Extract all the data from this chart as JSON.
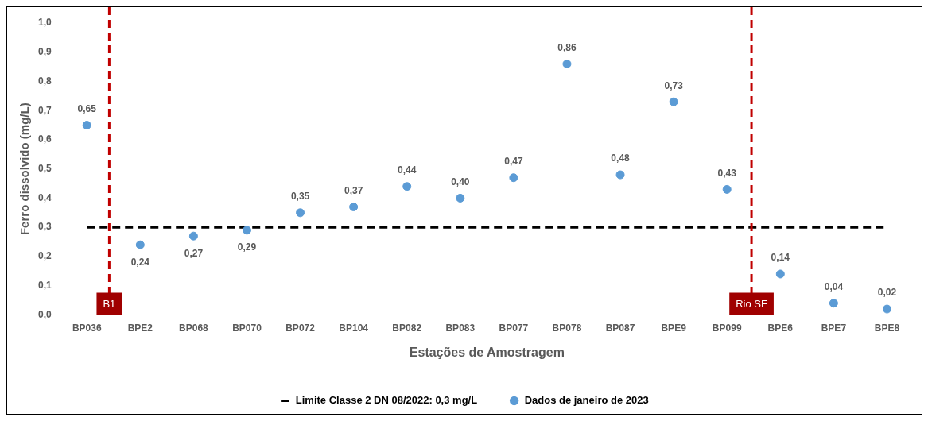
{
  "chart_data": {
    "type": "scatter",
    "xlabel": "Estações de Amostragem",
    "ylabel": "Ferro dissolvido (mg/L)",
    "categories": [
      "BP036",
      "BPE2",
      "BP068",
      "BP070",
      "BP072",
      "BP104",
      "BP082",
      "BP083",
      "BP077",
      "BP078",
      "BP087",
      "BPE9",
      "BP099",
      "BPE6",
      "BPE7",
      "BPE8"
    ],
    "series": [
      {
        "name": "Limite Classe 2 DN 08/2022: 0,3 mg/L",
        "type": "line",
        "color": "#000000",
        "line_style": "dashed",
        "marker": "none",
        "values": [
          0.3,
          0.3,
          0.3,
          0.3,
          0.3,
          0.3,
          0.3,
          0.3,
          0.3,
          0.3,
          0.3,
          0.3,
          0.3,
          0.3,
          0.3,
          0.3
        ]
      },
      {
        "name": "Dados de janeiro de 2023",
        "color": "#5b9bd5",
        "marker": "circle",
        "values": [
          0.65,
          0.24,
          0.27,
          0.29,
          0.35,
          0.37,
          0.44,
          0.4,
          0.47,
          0.86,
          0.48,
          0.73,
          0.43,
          0.14,
          0.04,
          0.02
        ],
        "value_labels": [
          "0,65",
          "0,24",
          "0,27",
          "0,29",
          "0,35",
          "0,37",
          "0,44",
          "0,40",
          "0,47",
          "0,86",
          "0,48",
          "0,73",
          "0,43",
          "0,14",
          "0,04",
          "0,02"
        ]
      }
    ],
    "ylim": [
      0,
      1
    ],
    "yticks": [
      {
        "value": 0,
        "label": "0,0"
      },
      {
        "value": 0.1,
        "label": "0,1"
      },
      {
        "value": 0.2,
        "label": "0,2"
      },
      {
        "value": 0.3,
        "label": "0,3"
      },
      {
        "value": 0.4,
        "label": "0,4"
      },
      {
        "value": 0.5,
        "label": "0,5"
      },
      {
        "value": 0.6,
        "label": "0,6"
      },
      {
        "value": 0.7,
        "label": "0,7"
      },
      {
        "value": 0.8,
        "label": "0,8"
      },
      {
        "value": 0.9,
        "label": "0,9"
      },
      {
        "value": 1,
        "label": "1,0"
      }
    ],
    "annotations": [
      "B1",
      "Rio SF"
    ],
    "grid": false,
    "legend": "bottom"
  }
}
